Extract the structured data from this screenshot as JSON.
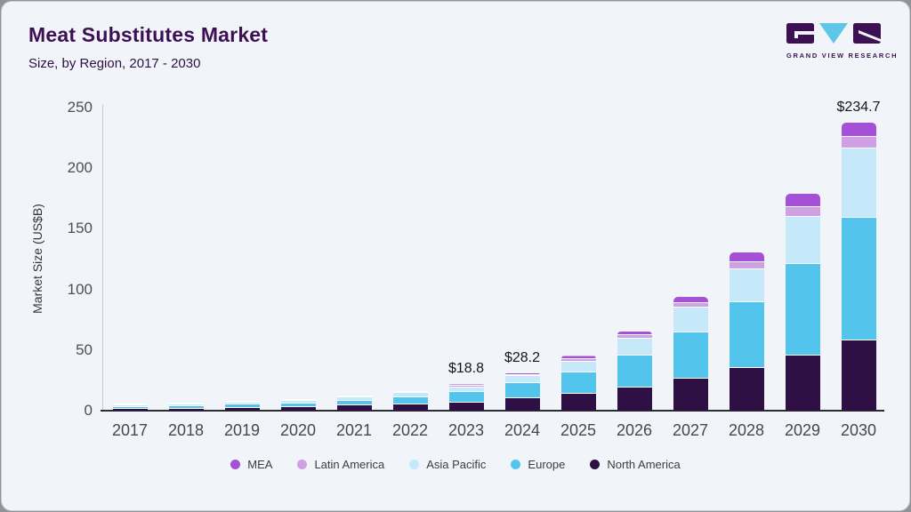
{
  "header": {
    "title": "Meat Substitutes Market",
    "subtitle": "Size, by Region, 2017 - 2030"
  },
  "logo": {
    "letters": "GVR",
    "text": "GRAND VIEW RESEARCH",
    "purple": "#3c1053",
    "blue": "#5ec6e8"
  },
  "chart_data": {
    "type": "bar",
    "stacked": true,
    "title": "Meat Substitutes Market Size, by Region, 2017 - 2030",
    "xlabel": "",
    "ylabel": "Market Size (US$B)",
    "ylim": [
      0,
      250
    ],
    "yticks": [
      0,
      50,
      100,
      150,
      200,
      250
    ],
    "grid": false,
    "legend_position": "bottom",
    "categories": [
      "2017",
      "2018",
      "2019",
      "2020",
      "2021",
      "2022",
      "2023",
      "2024",
      "2025",
      "2026",
      "2027",
      "2028",
      "2029",
      "2030"
    ],
    "series": [
      {
        "name": "North America",
        "color": "#2e1045",
        "values": [
          1.4,
          1.8,
          2.4,
          3.1,
          4.1,
          5.4,
          6.9,
          10.0,
          13.9,
          19.3,
          26.4,
          35.3,
          45.8,
          57.8
        ]
      },
      {
        "name": "Europe",
        "color": "#53c5ed",
        "values": [
          0.8,
          1.2,
          1.7,
          2.4,
          3.4,
          5.0,
          7.5,
          12.0,
          16.8,
          25.6,
          37.6,
          53.3,
          74.2,
          100.6
        ]
      },
      {
        "name": "Asia Pacific",
        "color": "#c6e9f9",
        "values": [
          0.5,
          0.7,
          0.9,
          1.2,
          1.7,
          2.5,
          3.4,
          4.8,
          8.5,
          12.8,
          19.3,
          26.6,
          38.2,
          56.3
        ]
      },
      {
        "name": "Latin America",
        "color": "#cfa0e4",
        "values": [
          0.1,
          0.1,
          0.1,
          0.2,
          0.2,
          0.3,
          0.5,
          0.7,
          1.4,
          2.1,
          3.3,
          4.9,
          7.2,
          9.3
        ]
      },
      {
        "name": "MEA",
        "color": "#a451d8",
        "values": [
          0.1,
          0.1,
          0.1,
          0.1,
          0.2,
          0.3,
          0.5,
          0.7,
          1.6,
          2.9,
          4.6,
          7.2,
          10.4,
          10.7
        ]
      }
    ],
    "totals": [
      2.9,
      3.9,
      5.2,
      7.0,
      9.6,
      13.5,
      18.8,
      28.2,
      42.2,
      62.7,
      91.2,
      127.3,
      175.8,
      234.7
    ],
    "value_labels": [
      {
        "category": "2023",
        "text": "$18.8"
      },
      {
        "category": "2024",
        "text": "$28.2"
      },
      {
        "category": "2030",
        "text": "$234.7"
      }
    ],
    "legend_order": [
      "MEA",
      "Latin America",
      "Asia Pacific",
      "Europe",
      "North America"
    ]
  }
}
